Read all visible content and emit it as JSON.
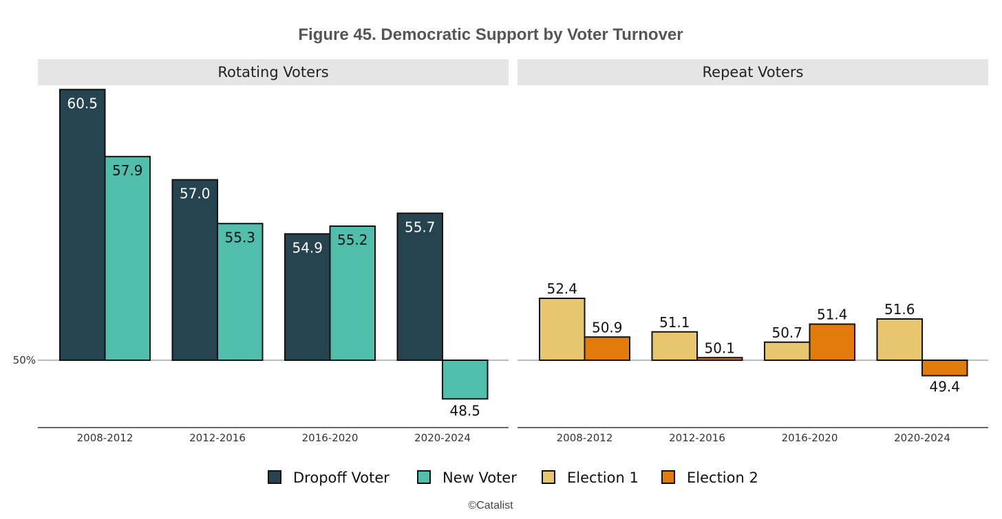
{
  "chart_data": {
    "type": "bar",
    "title": "Figure 45. Democratic Support by Voter Turnover",
    "caption": "©Catalist",
    "baseline": 50,
    "baseline_label": "50%",
    "ylim": [
      47.5,
      60.8
    ],
    "categories": [
      "2008-2012",
      "2012-2016",
      "2016-2020",
      "2020-2024"
    ],
    "panels": [
      {
        "name": "Rotating Voters",
        "series": [
          {
            "name": "Dropoff Voter",
            "color": "#26444f",
            "label_color": "#ffffff",
            "values": [
              60.5,
              57.0,
              54.9,
              55.7
            ]
          },
          {
            "name": "New Voter",
            "color": "#51bdab",
            "label_color": "#111111",
            "values": [
              57.9,
              55.3,
              55.2,
              48.5
            ]
          }
        ]
      },
      {
        "name": "Repeat Voters",
        "series": [
          {
            "name": "Election 1",
            "color": "#e8c66e",
            "label_color": "#111111",
            "values": [
              52.4,
              51.1,
              50.7,
              51.6
            ]
          },
          {
            "name": "Election 2",
            "color": "#e07b0c",
            "label_color": "#111111",
            "values": [
              50.9,
              50.1,
              51.4,
              49.4
            ]
          }
        ]
      }
    ],
    "legend": [
      "Dropoff Voter",
      "New Voter",
      "Election 1",
      "Election 2"
    ],
    "legend_position": "bottom",
    "grid": false
  }
}
